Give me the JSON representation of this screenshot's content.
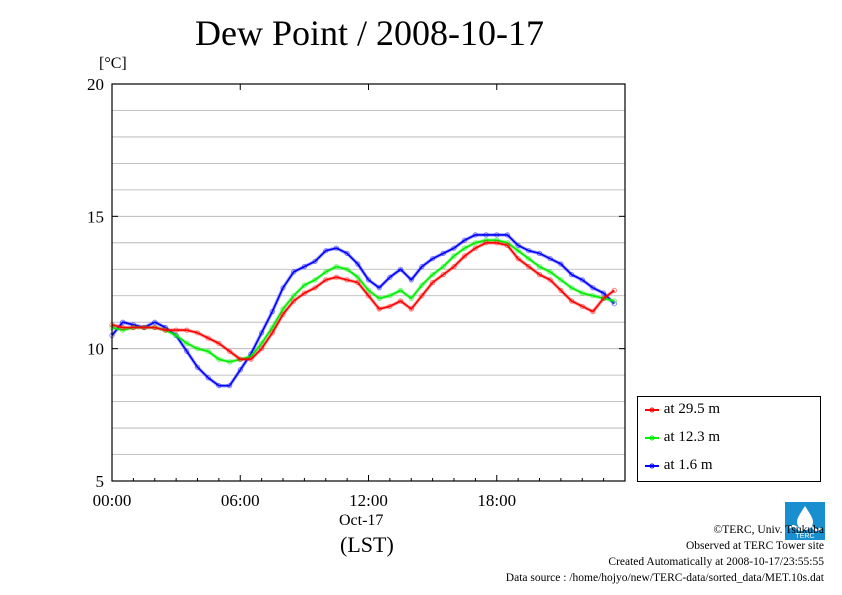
{
  "chart_data": {
    "type": "line",
    "title": "Dew Point / 2008-10-17",
    "ylabel": "[°C]",
    "xlabel_date": "Oct-17",
    "xlabel_tz": "(LST)",
    "ylim": [
      5,
      20
    ],
    "xlim": [
      0,
      24
    ],
    "x_ticks": [
      {
        "value": 0,
        "label": "00:00"
      },
      {
        "value": 6,
        "label": "06:00"
      },
      {
        "value": 12,
        "label": "12:00"
      },
      {
        "value": 18,
        "label": "18:00"
      }
    ],
    "y_ticks": [
      {
        "value": 5,
        "label": "5"
      },
      {
        "value": 10,
        "label": "10"
      },
      {
        "value": 15,
        "label": "15"
      },
      {
        "value": 20,
        "label": "20"
      }
    ],
    "grid": "horizontal lines every 1 °C",
    "legend_position": "bottom-right outside",
    "series": [
      {
        "name": "at 29.5 m",
        "color": "#ff0000",
        "x": [
          0,
          0.5,
          1,
          1.5,
          2,
          2.5,
          3,
          3.5,
          4,
          4.5,
          5,
          5.5,
          6,
          6.5,
          7,
          7.5,
          8,
          8.5,
          9,
          9.5,
          10,
          10.5,
          11,
          11.5,
          12,
          12.5,
          13,
          13.5,
          14,
          14.5,
          15,
          15.5,
          16,
          16.5,
          17,
          17.5,
          18,
          18.5,
          19,
          19.5,
          20,
          20.5,
          21,
          21.5,
          22,
          22.5,
          23,
          23.5
        ],
        "values": [
          10.9,
          10.8,
          10.8,
          10.8,
          10.8,
          10.7,
          10.7,
          10.7,
          10.6,
          10.4,
          10.2,
          9.9,
          9.6,
          9.6,
          10.0,
          10.6,
          11.3,
          11.8,
          12.1,
          12.3,
          12.6,
          12.7,
          12.6,
          12.5,
          12.0,
          11.5,
          11.6,
          11.8,
          11.5,
          12.0,
          12.5,
          12.8,
          13.1,
          13.5,
          13.8,
          14.0,
          14.0,
          13.9,
          13.4,
          13.1,
          12.8,
          12.6,
          12.2,
          11.8,
          11.6,
          11.4,
          11.9,
          12.2
        ]
      },
      {
        "name": "at 12.3 m",
        "color": "#00ee00",
        "x": [
          0,
          0.5,
          1,
          1.5,
          2,
          2.5,
          3,
          3.5,
          4,
          4.5,
          5,
          5.5,
          6,
          6.5,
          7,
          7.5,
          8,
          8.5,
          9,
          9.5,
          10,
          10.5,
          11,
          11.5,
          12,
          12.5,
          13,
          13.5,
          14,
          14.5,
          15,
          15.5,
          16,
          16.5,
          17,
          17.5,
          18,
          18.5,
          19,
          19.5,
          20,
          20.5,
          21,
          21.5,
          22,
          22.5,
          23,
          23.5
        ],
        "values": [
          10.8,
          10.7,
          10.8,
          10.8,
          10.8,
          10.7,
          10.5,
          10.2,
          10.0,
          9.9,
          9.6,
          9.5,
          9.6,
          9.7,
          10.2,
          10.8,
          11.5,
          12.0,
          12.4,
          12.6,
          12.9,
          13.1,
          13.0,
          12.7,
          12.2,
          11.9,
          12.0,
          12.2,
          11.9,
          12.4,
          12.8,
          13.1,
          13.5,
          13.8,
          14.0,
          14.1,
          14.1,
          14.0,
          13.7,
          13.4,
          13.1,
          12.9,
          12.6,
          12.3,
          12.1,
          12.0,
          11.9,
          11.8
        ]
      },
      {
        "name": "at 1.6 m",
        "color": "#0000ff",
        "x": [
          0,
          0.5,
          1,
          1.5,
          2,
          2.5,
          3,
          3.5,
          4,
          4.5,
          5,
          5.5,
          6,
          6.5,
          7,
          7.5,
          8,
          8.5,
          9,
          9.5,
          10,
          10.5,
          11,
          11.5,
          12,
          12.5,
          13,
          13.5,
          14,
          14.5,
          15,
          15.5,
          16,
          16.5,
          17,
          17.5,
          18,
          18.5,
          19,
          19.5,
          20,
          20.5,
          21,
          21.5,
          22,
          22.5,
          23,
          23.5
        ],
        "values": [
          10.5,
          11.0,
          10.9,
          10.8,
          11.0,
          10.8,
          10.5,
          9.9,
          9.3,
          8.9,
          8.6,
          8.6,
          9.2,
          9.8,
          10.6,
          11.4,
          12.3,
          12.9,
          13.1,
          13.3,
          13.7,
          13.8,
          13.6,
          13.2,
          12.6,
          12.3,
          12.7,
          13.0,
          12.6,
          13.1,
          13.4,
          13.6,
          13.8,
          14.1,
          14.3,
          14.3,
          14.3,
          14.3,
          13.9,
          13.7,
          13.6,
          13.4,
          13.2,
          12.8,
          12.6,
          12.3,
          12.1,
          11.7
        ]
      }
    ]
  },
  "footer": {
    "copyright": "©TERC, Univ. Tsukuba",
    "observed": "Observed at TERC Tower site",
    "created": "Created Automatically at 2008-10-17/23:55:55",
    "source": "Data source : /home/hojyo/new/TERC-data/sorted_data/MET.10s.dat"
  },
  "logo_text": "TERC",
  "colors": {
    "logo_blue": "#1a8fd0"
  }
}
